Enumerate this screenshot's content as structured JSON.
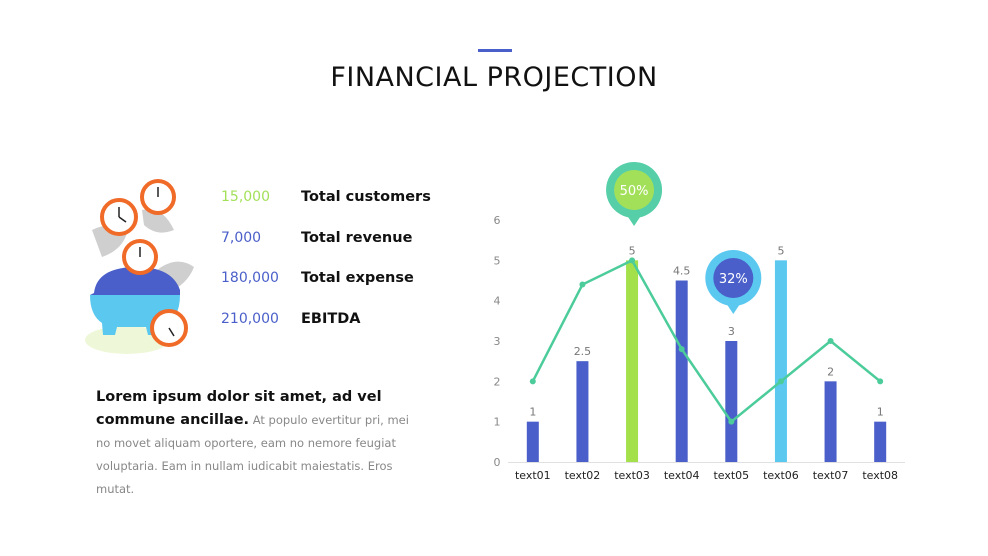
{
  "header": {
    "title": "FINANCIAL PROJECTION"
  },
  "stats": [
    {
      "value": "15,000",
      "label": "Total customers",
      "color": "#a3e05a"
    },
    {
      "value": "7,000",
      "label": "Total revenue",
      "color": "#4a5fc9"
    },
    {
      "value": "180,000",
      "label": "Total expense",
      "color": "#4a5fc9"
    },
    {
      "value": "210,000",
      "label": "EBITDA",
      "color": "#4a5fc9"
    }
  ],
  "paragraph": {
    "bold": "Lorem ipsum dolor sit amet, ad vel commune ancillae.",
    "text": "At populo evertitur pri, mei no movet aliquam oportere, eam no nemore feugiat voluptaria. Eam in nullam iudicabit maiestatis.  Eros mutat."
  },
  "illustration": "piggy-bank-with-clocks-and-money",
  "chart_data": {
    "type": "bar",
    "categories": [
      "text01",
      "text02",
      "text03",
      "text04",
      "text05",
      "text06",
      "text07",
      "text08"
    ],
    "series": [
      {
        "type": "bar",
        "values": [
          1,
          2.5,
          5,
          4.5,
          3,
          5,
          2,
          1
        ],
        "colors": [
          "#4a5fc9",
          "#4a5fc9",
          "#a3e04a",
          "#4a5fc9",
          "#4a5fc9",
          "#5bc8f0",
          "#4a5fc9",
          "#4a5fc9"
        ],
        "data_labels": [
          "1",
          "2.5",
          "5",
          "4.5",
          "3",
          "5",
          "2",
          "1"
        ]
      },
      {
        "type": "line",
        "values": [
          2,
          4.4,
          5,
          2.8,
          1,
          2,
          3,
          2
        ],
        "color": "#4ccc9a"
      }
    ],
    "ylim": [
      0,
      6
    ],
    "yticks": [
      "0",
      "1",
      "2",
      "3",
      "4",
      "5",
      "6"
    ],
    "grid": false,
    "callouts": [
      {
        "category": "text03",
        "label": "50%",
        "outer": "#56cfa8",
        "inner": "#a3e05a"
      },
      {
        "category": "text05",
        "label": "32%",
        "outer": "#5bc8f0",
        "inner": "#4a5fc9"
      }
    ]
  }
}
